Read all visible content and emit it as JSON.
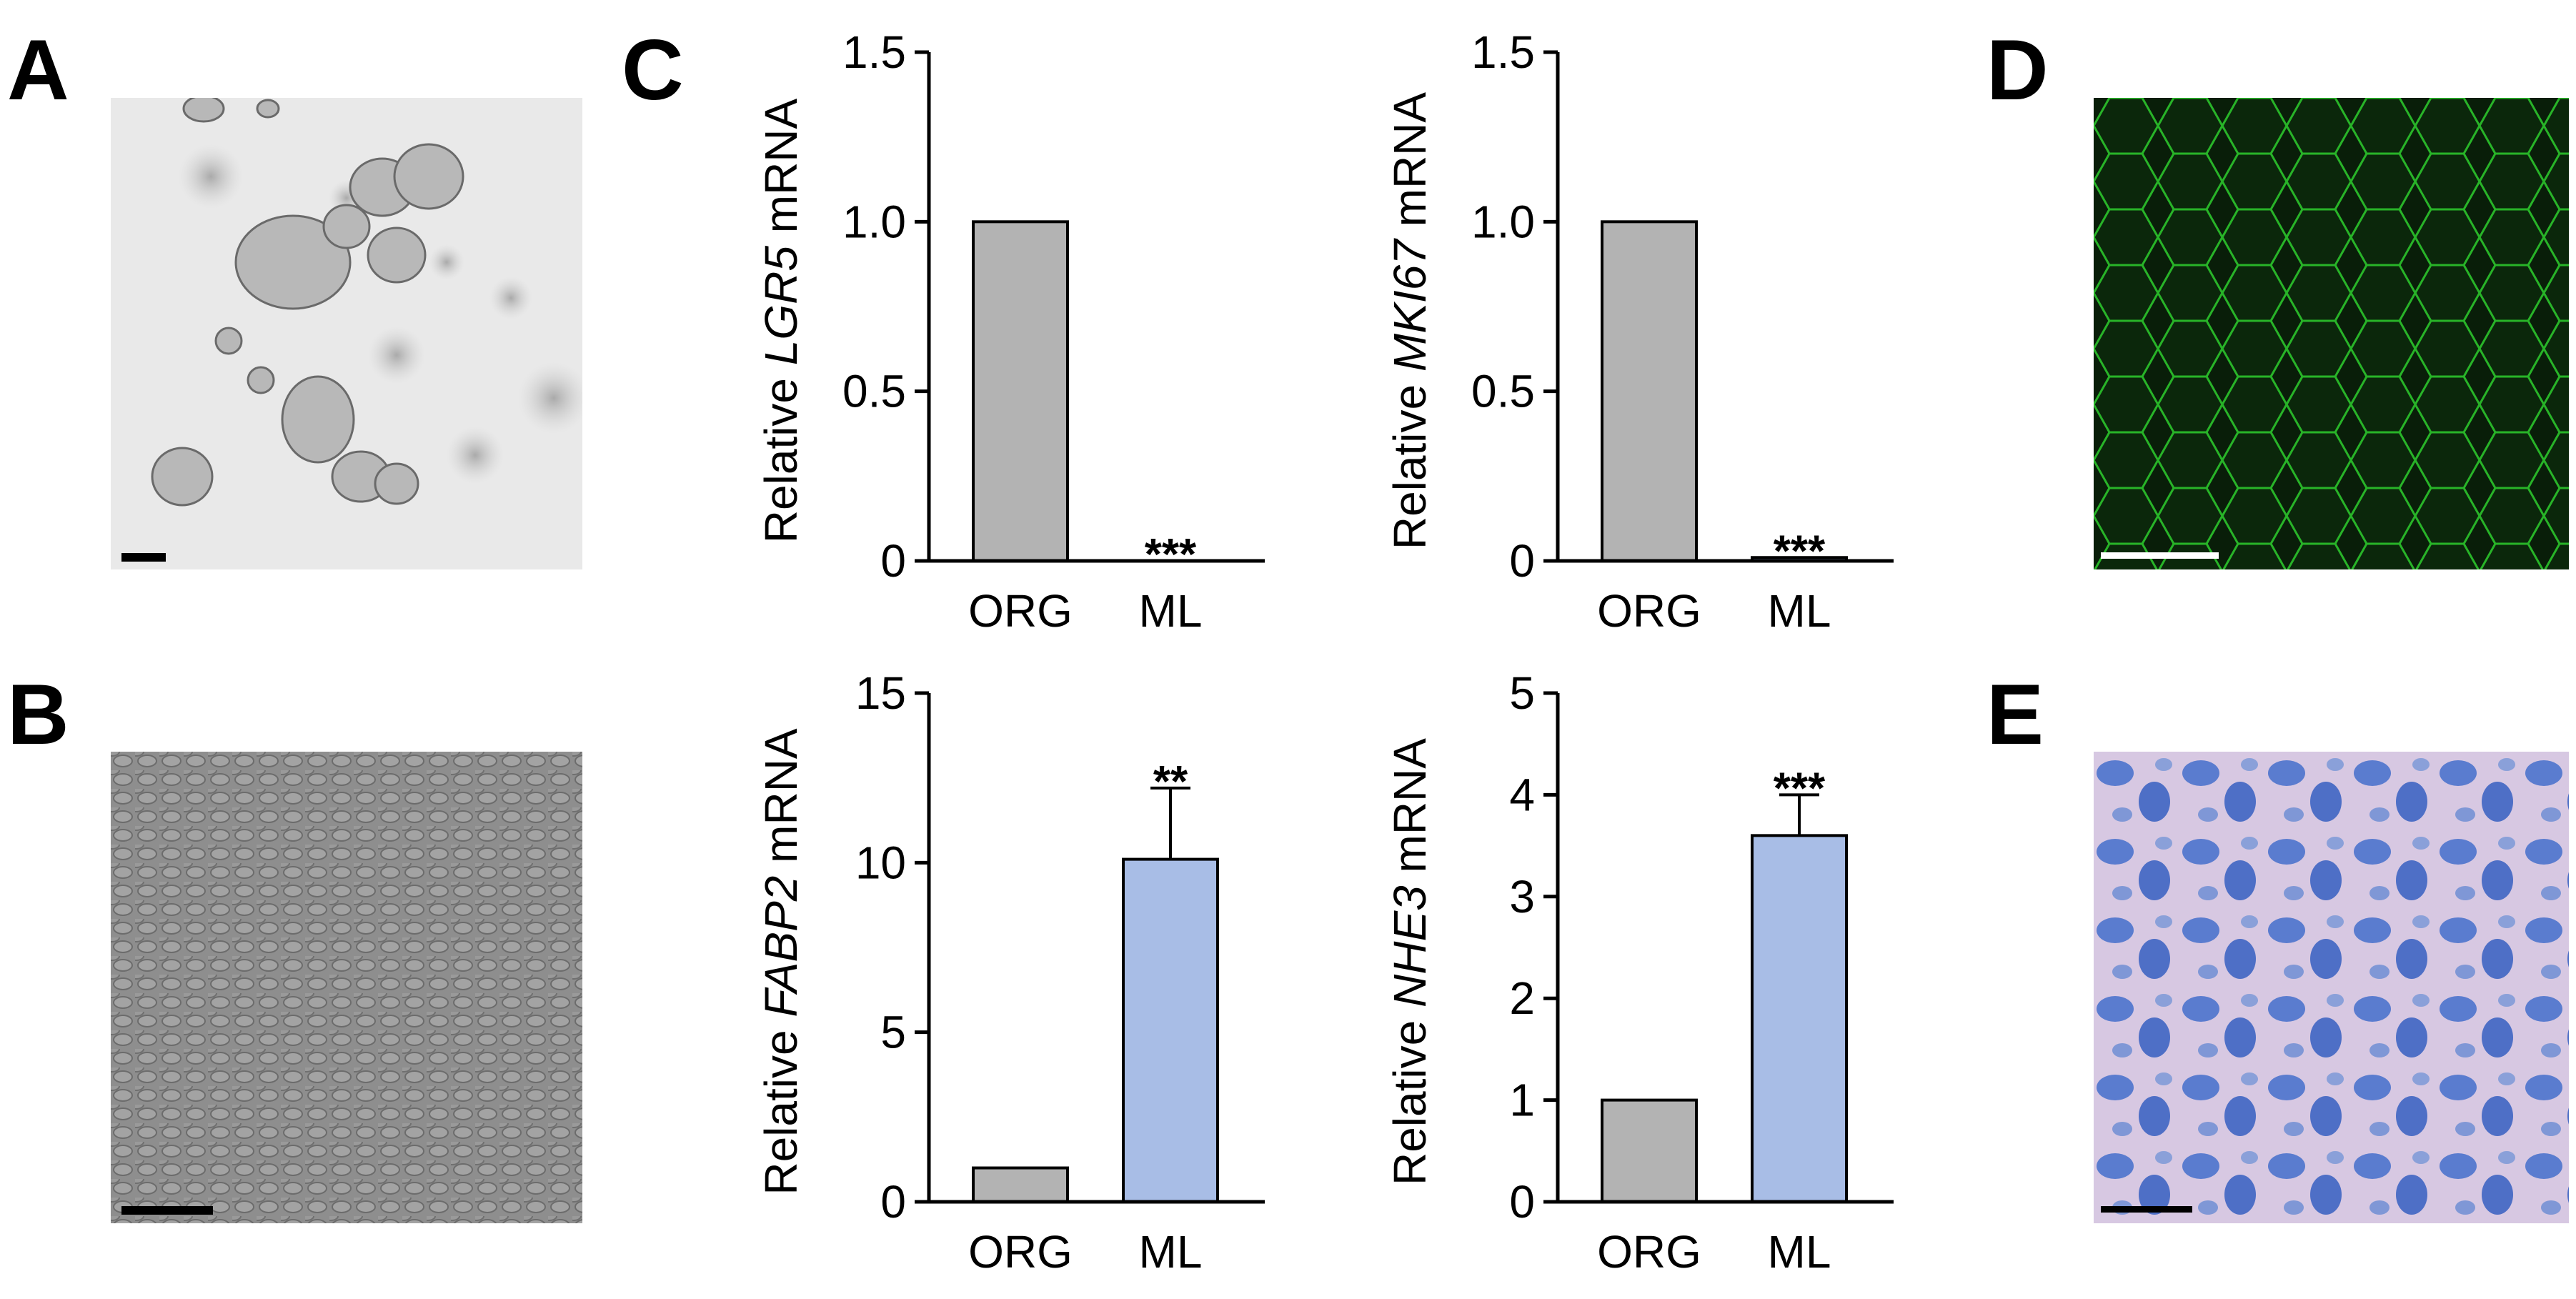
{
  "panels": {
    "A": "A",
    "B": "B",
    "C": "C",
    "D": "D",
    "E": "E"
  },
  "images": {
    "A": {
      "description_icon": "organoid-brightfield-image"
    },
    "B": {
      "description_icon": "monolayer-phase-contrast-image"
    },
    "D": {
      "description_icon": "green-fluorescence-cell-borders-image",
      "color": "#2fd42f"
    },
    "E": {
      "description_icon": "blue-stained-monolayer-image",
      "color": "#4a6fc4"
    }
  },
  "colors": {
    "org_bar": "#b3b3b3",
    "ml_bar": "#a8bde6",
    "axis": "#000000"
  },
  "chart_data": [
    {
      "type": "bar",
      "categories": [
        "ORG",
        "ML"
      ],
      "values": [
        1.0,
        0.0
      ],
      "errors": [
        0,
        0
      ],
      "ylabel_prefix": "Relative ",
      "ylabel_gene": "LGR5",
      "ylabel_suffix": " mRNA",
      "ylim": [
        0,
        1.5
      ],
      "yticks": [
        "0",
        "0.5",
        "1.0",
        "1.5"
      ],
      "significance": [
        "",
        "***"
      ]
    },
    {
      "type": "bar",
      "categories": [
        "ORG",
        "ML"
      ],
      "values": [
        1.0,
        0.01
      ],
      "errors": [
        0,
        0
      ],
      "ylabel_prefix": "Relative ",
      "ylabel_gene": "MKI67",
      "ylabel_suffix": " mRNA",
      "ylim": [
        0,
        1.5
      ],
      "yticks": [
        "0",
        "0.5",
        "1.0",
        "1.5"
      ],
      "significance": [
        "",
        "***"
      ]
    },
    {
      "type": "bar",
      "categories": [
        "ORG",
        "ML"
      ],
      "values": [
        1.0,
        10.1
      ],
      "errors": [
        0,
        2.1
      ],
      "ylabel_prefix": "Relative ",
      "ylabel_gene": "FABP2",
      "ylabel_suffix": " mRNA",
      "ylim": [
        0,
        15
      ],
      "yticks": [
        "0",
        "5",
        "10",
        "15"
      ],
      "significance": [
        "",
        "**"
      ]
    },
    {
      "type": "bar",
      "categories": [
        "ORG",
        "ML"
      ],
      "values": [
        1.0,
        3.6
      ],
      "errors": [
        0,
        0.4
      ],
      "ylabel_prefix": "Relative ",
      "ylabel_gene": "NHE3",
      "ylabel_suffix": " mRNA",
      "ylim": [
        0,
        5
      ],
      "yticks": [
        "0",
        "1",
        "2",
        "3",
        "4",
        "5"
      ],
      "significance": [
        "",
        "***"
      ]
    }
  ]
}
